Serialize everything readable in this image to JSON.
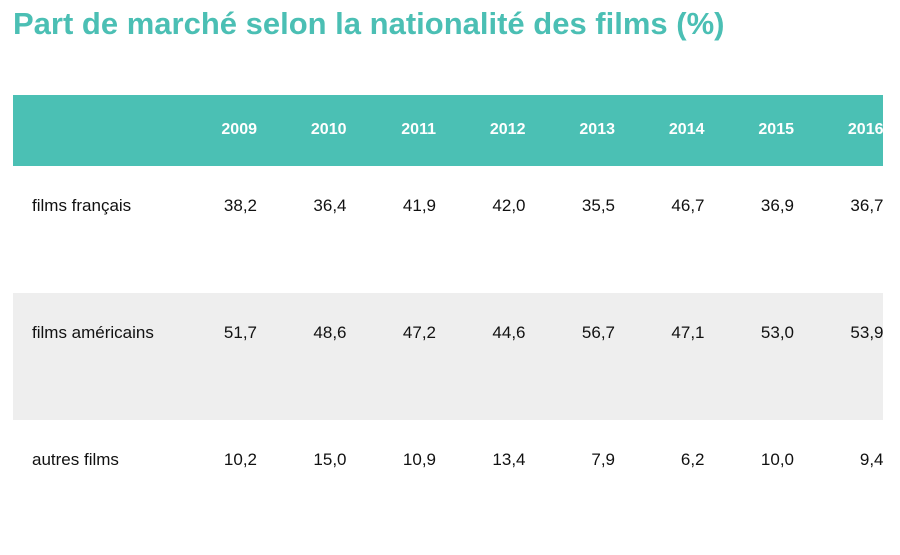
{
  "title": "Part de marché selon la nationalité des films (%)",
  "colors": {
    "accent": "#4bc0b4",
    "stripe": "#eeeeee"
  },
  "chart_data": {
    "type": "table",
    "title": "Part de marché selon la nationalité des films (%)",
    "columns": [
      "2009",
      "2010",
      "2011",
      "2012",
      "2013",
      "2014",
      "2015",
      "2016"
    ],
    "rows": [
      {
        "label": "films français",
        "values": [
          "38,2",
          "36,4",
          "41,9",
          "42,0",
          "35,5",
          "46,7",
          "36,9",
          "36,7"
        ]
      },
      {
        "label": "films américains",
        "values": [
          "51,7",
          "48,6",
          "47,2",
          "44,6",
          "56,7",
          "47,1",
          "53,0",
          "53,9"
        ]
      },
      {
        "label": "autres films",
        "values": [
          "10,2",
          "15,0",
          "10,9",
          "13,4",
          "7,9",
          "6,2",
          "10,0",
          "9,4"
        ]
      }
    ]
  }
}
